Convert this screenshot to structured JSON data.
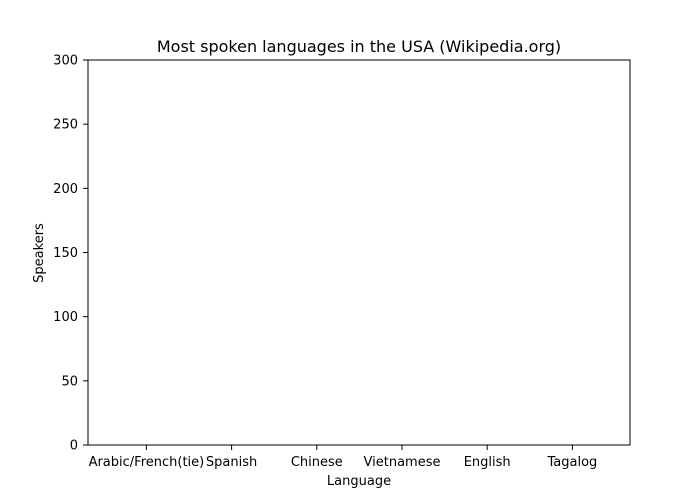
{
  "chart_data": {
    "type": "bar",
    "title": "Most spoken languages in the USA (Wikipedia.org)",
    "xlabel": "Language",
    "ylabel": "Speakers",
    "categories": [
      "Arabic/French(tie)",
      "Spanish",
      "Chinese",
      "Vietnamese",
      "English",
      "Tagalog"
    ],
    "values": [
      null,
      null,
      null,
      null,
      null,
      null
    ],
    "ylim": [
      0,
      300
    ],
    "yticks": [
      0,
      50,
      100,
      150,
      200,
      250,
      300
    ],
    "grid": false,
    "legend": "none"
  }
}
